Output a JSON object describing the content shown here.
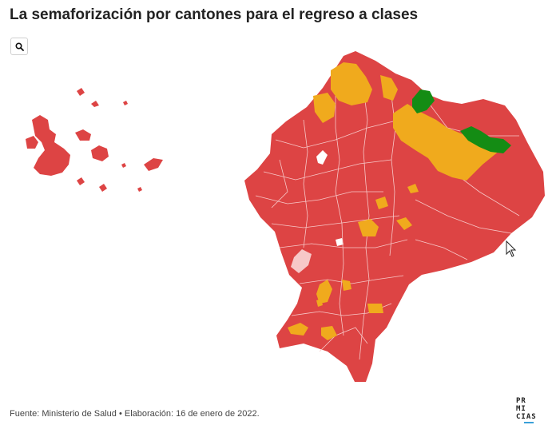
{
  "title": "La semaforización por cantones para el regreso a clases",
  "footer": "Fuente: Ministerio de Salud • Elaboración: 16 de enero de 2022.",
  "logo": {
    "line1": "PR",
    "line2": "MI",
    "line3": "CIAS"
  },
  "controls": {
    "search_icon": "magnifier-icon"
  },
  "legend_colors": {
    "red": "#dd4444",
    "yellow": "#f0aa1d",
    "green": "#148c14",
    "borders": "#f7c8c8"
  }
}
